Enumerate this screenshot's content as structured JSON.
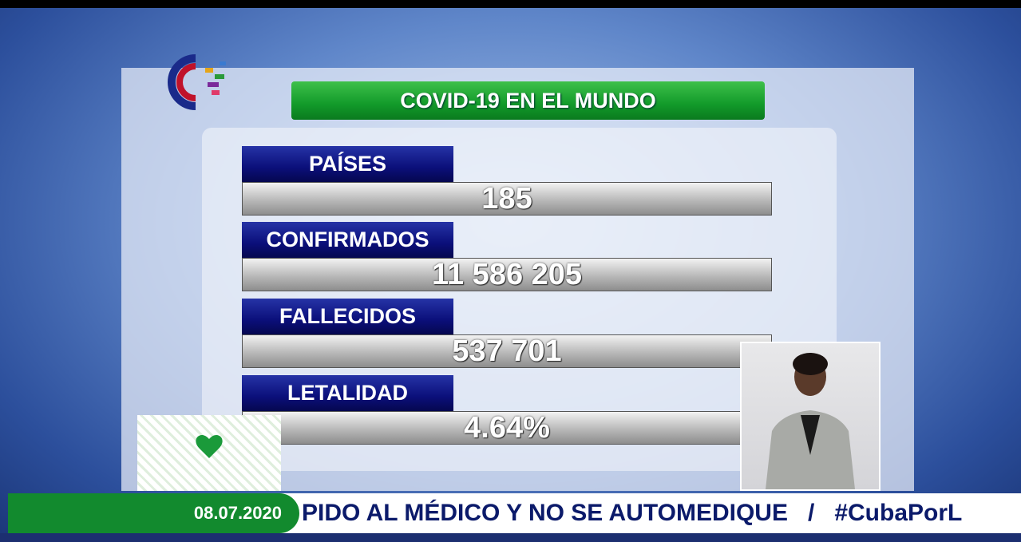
{
  "header": {
    "title": "COVID-19 EN EL MUNDO"
  },
  "stats": [
    {
      "label": "PAÍSES",
      "value": "185"
    },
    {
      "label": "CONFIRMADOS",
      "value": "11 586 205"
    },
    {
      "label": "FALLECIDOS",
      "value": "537 701"
    },
    {
      "label": "LETALIDAD",
      "value": "4.64%"
    }
  ],
  "ticker": {
    "date": "08.07.2020",
    "text": "PIDO AL MÉDICO Y NO SE AUTOMEDIQUE   /   #CubaPorL"
  }
}
